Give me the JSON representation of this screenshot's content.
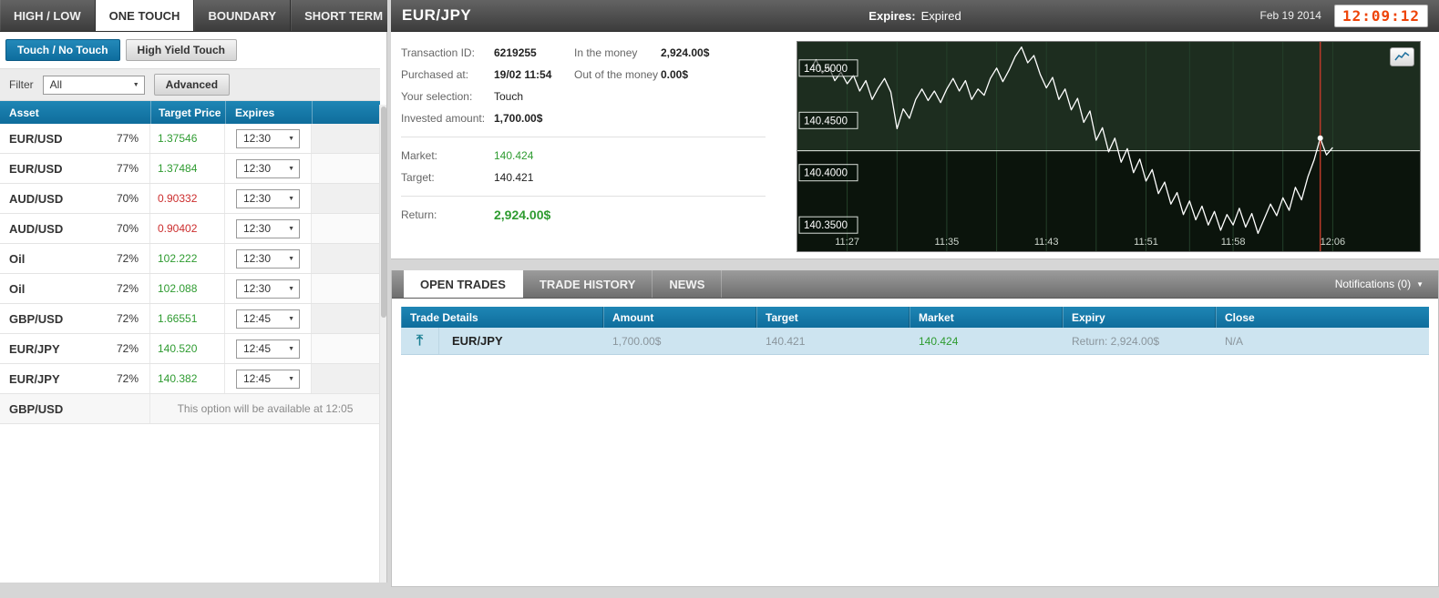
{
  "colors": {
    "up": "#2e9b30",
    "down": "#cc2d2d",
    "accent_blue": "#1173a6",
    "clock": "#ee4409"
  },
  "top_tabs": [
    {
      "label": "HIGH / LOW",
      "active": false
    },
    {
      "label": "ONE TOUCH",
      "active": true
    },
    {
      "label": "BOUNDARY",
      "active": false
    },
    {
      "label": "SHORT TERM",
      "active": false
    }
  ],
  "left_panel": {
    "subtabs": [
      {
        "label": "Touch / No Touch",
        "active": true
      },
      {
        "label": "High Yield Touch",
        "active": false
      }
    ],
    "filter": {
      "label": "Filter",
      "value": "All",
      "advanced_label": "Advanced"
    },
    "table": {
      "headers": [
        "Asset",
        "Target Price",
        "Expires"
      ],
      "rows": [
        {
          "asset": "EUR/USD",
          "percent": "77%",
          "target": "1.37546",
          "direction": "up",
          "expires": "12:30"
        },
        {
          "asset": "EUR/USD",
          "percent": "77%",
          "target": "1.37484",
          "direction": "up",
          "expires": "12:30"
        },
        {
          "asset": "AUD/USD",
          "percent": "70%",
          "target": "0.90332",
          "direction": "down",
          "expires": "12:30"
        },
        {
          "asset": "AUD/USD",
          "percent": "70%",
          "target": "0.90402",
          "direction": "down",
          "expires": "12:30"
        },
        {
          "asset": "Oil",
          "percent": "72%",
          "target": "102.222",
          "direction": "up",
          "expires": "12:30"
        },
        {
          "asset": "Oil",
          "percent": "72%",
          "target": "102.088",
          "direction": "up",
          "expires": "12:30"
        },
        {
          "asset": "GBP/USD",
          "percent": "72%",
          "target": "1.66551",
          "direction": "up",
          "expires": "12:45"
        },
        {
          "asset": "EUR/JPY",
          "percent": "72%",
          "target": "140.520",
          "direction": "up",
          "expires": "12:45"
        },
        {
          "asset": "EUR/JPY",
          "percent": "72%",
          "target": "140.382",
          "direction": "up",
          "expires": "12:45"
        }
      ],
      "unavailable": {
        "asset": "GBP/USD",
        "message": "This option will be available at 12:05"
      }
    }
  },
  "trade_panel": {
    "header": {
      "symbol": "EUR/JPY",
      "expires_label": "Expires:",
      "expires_value": "Expired",
      "date": "Feb 19 2014",
      "clock": "12:09:12"
    },
    "details": {
      "transaction_id_label": "Transaction ID:",
      "transaction_id": "6219255",
      "purchased_at_label": "Purchased at:",
      "purchased_at": "19/02 11:54",
      "selection_label": "Your selection:",
      "selection": "Touch",
      "invested_label": "Invested amount:",
      "invested": "1,700.00$",
      "in_money_label": "In the money",
      "in_money": "2,924.00$",
      "out_money_label": "Out of the money",
      "out_money": "0.00$",
      "market_label": "Market:",
      "market": "140.424",
      "market_direction": "up",
      "target_label": "Target:",
      "target": "140.421",
      "return_label": "Return:",
      "return": "2,924.00$",
      "return_direction": "up"
    }
  },
  "chart_data": {
    "type": "line",
    "title": "EUR/JPY price chart",
    "x_ticks": [
      "11:27",
      "11:35",
      "11:43",
      "11:51",
      "11:58",
      "12:06"
    ],
    "x_tick_minutes": [
      3,
      11,
      19,
      27,
      34,
      42
    ],
    "y_ticks": [
      "140.5000",
      "140.4500",
      "140.4000",
      "140.3500"
    ],
    "y_tick_values": [
      140.5,
      140.45,
      140.4,
      140.35
    ],
    "xlim_minutes": [
      -1,
      49
    ],
    "ylim": [
      140.325,
      140.525
    ],
    "target_line": 140.421,
    "expiry_line_minute": 41,
    "x": [
      0,
      0.5,
      1,
      1.5,
      2,
      2.5,
      3,
      3.5,
      4,
      4.5,
      5,
      5.5,
      6,
      6.5,
      7,
      7.5,
      8,
      8.5,
      9,
      9.5,
      10,
      10.5,
      11,
      11.5,
      12,
      12.5,
      13,
      13.5,
      14,
      14.5,
      15,
      15.5,
      16,
      16.5,
      17,
      17.5,
      18,
      18.5,
      19,
      19.5,
      20,
      20.5,
      21,
      21.5,
      22,
      22.5,
      23,
      23.5,
      24,
      24.5,
      25,
      25.5,
      26,
      26.5,
      27,
      27.5,
      28,
      28.5,
      29,
      29.5,
      30,
      30.5,
      31,
      31.5,
      32,
      32.5,
      33,
      33.5,
      34,
      34.5,
      35,
      35.5,
      36,
      36.5,
      37,
      37.5,
      38,
      38.5,
      39,
      39.5,
      40,
      40.5,
      41,
      41.5,
      42
    ],
    "values": [
      140.498,
      140.508,
      140.495,
      140.502,
      140.488,
      140.496,
      140.485,
      140.493,
      140.478,
      140.488,
      140.47,
      140.481,
      140.49,
      140.477,
      140.442,
      140.461,
      140.452,
      140.47,
      140.48,
      140.469,
      140.478,
      140.467,
      140.48,
      140.49,
      140.478,
      140.488,
      140.47,
      140.48,
      140.474,
      140.49,
      140.5,
      140.487,
      140.498,
      140.511,
      140.52,
      140.505,
      140.512,
      140.494,
      140.481,
      140.491,
      140.47,
      140.48,
      140.46,
      140.471,
      140.448,
      140.459,
      140.431,
      140.443,
      140.42,
      140.433,
      140.41,
      140.423,
      140.4,
      140.413,
      140.392,
      140.403,
      140.38,
      140.391,
      140.37,
      140.381,
      140.36,
      140.373,
      140.355,
      140.368,
      140.35,
      140.363,
      140.345,
      140.36,
      140.35,
      140.366,
      140.348,
      140.361,
      140.342,
      140.356,
      140.37,
      140.359,
      140.376,
      140.364,
      140.386,
      140.374,
      140.396,
      140.412,
      140.433,
      140.417,
      140.424
    ],
    "line_color": "#ffffff",
    "bg_color": "#0b140c",
    "bg_upper_color": "#1d2d1f",
    "grid_color": "#24402a",
    "target_line_color": "#e9efe9",
    "expiry_line_color": "#bb3a2a"
  },
  "bottom_panel": {
    "tabs": [
      {
        "label": "OPEN TRADES",
        "active": true
      },
      {
        "label": "TRADE HISTORY",
        "active": false
      },
      {
        "label": "NEWS",
        "active": false
      }
    ],
    "notifications": "Notifications (0)",
    "table": {
      "headers": [
        "Trade Details",
        "Amount",
        "Target",
        "Market",
        "Expiry",
        "Close"
      ],
      "rows": [
        {
          "asset": "EUR/JPY",
          "amount": "1,700.00$",
          "target": "140.421",
          "market": "140.424",
          "market_direction": "up",
          "expiry": "Return: 2,924.00$",
          "close": "N/A"
        }
      ]
    }
  }
}
